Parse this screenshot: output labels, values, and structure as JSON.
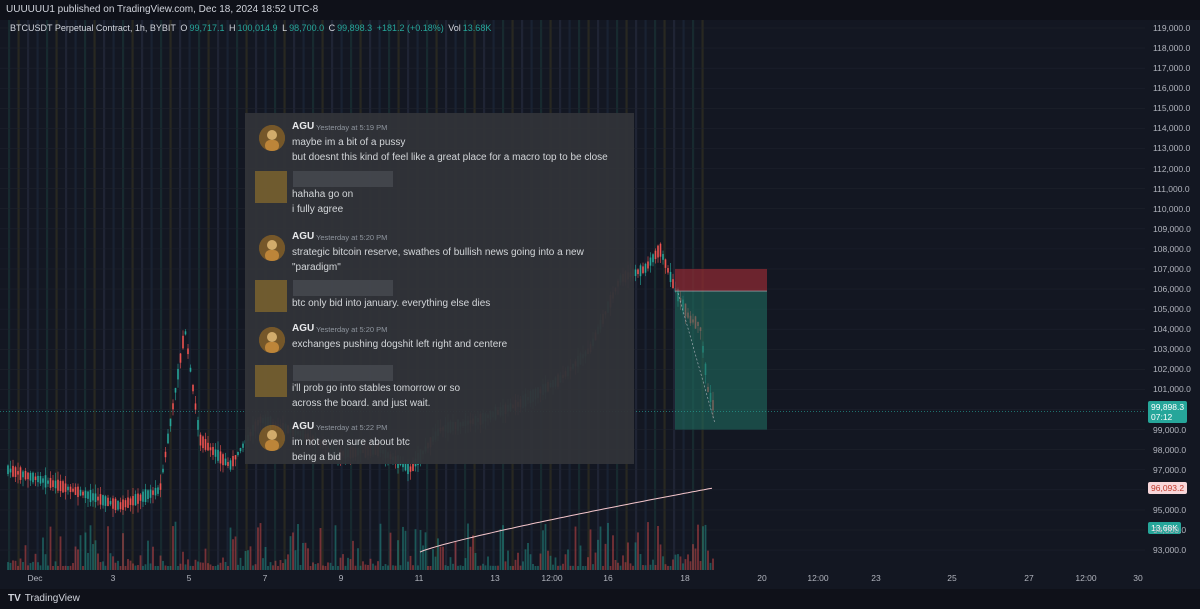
{
  "header": {
    "text": "UUUUUU1 published on TradingView.com, Dec 18, 2024 18:52 UTC-8"
  },
  "symbol": {
    "name": "BTCUSDT Perpetual Contract, 1h, BYBIT",
    "o_key": "O",
    "o_val": "99,717.1",
    "h_key": "H",
    "h_val": "100,014.9",
    "l_key": "L",
    "l_val": "98,700.0",
    "c_key": "C",
    "c_val": "99,898.3",
    "change": "+181.2 (+0.18%)",
    "vol_key": "Vol",
    "vol_val": "13.68K"
  },
  "price_axis": {
    "labels": [
      "119,000.0",
      "118,000.0",
      "117,000.0",
      "116,000.0",
      "115,000.0",
      "114,000.0",
      "113,000.0",
      "112,000.0",
      "111,000.0",
      "110,000.0",
      "109,000.0",
      "108,000.0",
      "107,000.0",
      "106,000.0",
      "105,000.0",
      "104,000.0",
      "103,000.0",
      "102,000.0",
      "101,000.0",
      "99,000.0",
      "98,000.0",
      "97,000.0",
      "95,000.0",
      "94,000.0",
      "93,000.0"
    ],
    "current_price": "99,898.3",
    "countdown": "07:12",
    "ma_value": "96,093.2",
    "volume_value": "13.68K"
  },
  "time_axis": {
    "labels": [
      "Dec",
      "3",
      "5",
      "7",
      "9",
      "11",
      "13",
      "12:00",
      "16",
      "18",
      "20",
      "12:00",
      "23",
      "25",
      "27",
      "12:00",
      "30"
    ]
  },
  "chat": {
    "messages": [
      {
        "author": "AGU",
        "time": "Yesterday at 5:19 PM",
        "lines": [
          "maybe im a bit of a pussy",
          "but doesnt this kind of feel like a great place for a macro top to be close"
        ]
      },
      {
        "author": "",
        "time": "",
        "lines": [
          "hahaha go on",
          "i fully agree"
        ]
      },
      {
        "author": "AGU",
        "time": "Yesterday at 5:20 PM",
        "lines": [
          "strategic bitcoin reserve, swathes of bullish news going into a new",
          "\"paradigm\""
        ]
      },
      {
        "author": "",
        "time": "",
        "lines": [
          "btc only bid into january. everything else dies"
        ]
      },
      {
        "author": "AGU",
        "time": "Yesterday at 5:20 PM",
        "lines": [
          "exchanges pushing dogshit left right and centere"
        ]
      },
      {
        "author": "",
        "time": "",
        "lines": [
          "i'll prob go into stables tomorrow or so",
          "across the board. and just wait."
        ]
      },
      {
        "author": "AGU",
        "time": "Yesterday at 5:22 PM",
        "lines": [
          "im not even sure about btc",
          "being a bid"
        ]
      }
    ]
  },
  "footer": {
    "brand": "TradingView",
    "logo": "TV"
  },
  "colors": {
    "background": "#131722",
    "up": "#26a69a",
    "down": "#ef5350",
    "short_loss_zone": "#8b2a33",
    "short_profit_zone": "#1f6b5f",
    "ma_line": "#f5c6cc",
    "chat_bg": "#313338"
  },
  "icons": {
    "logo": "tradingview-logo-icon",
    "avatar": "user-avatar-icon"
  }
}
